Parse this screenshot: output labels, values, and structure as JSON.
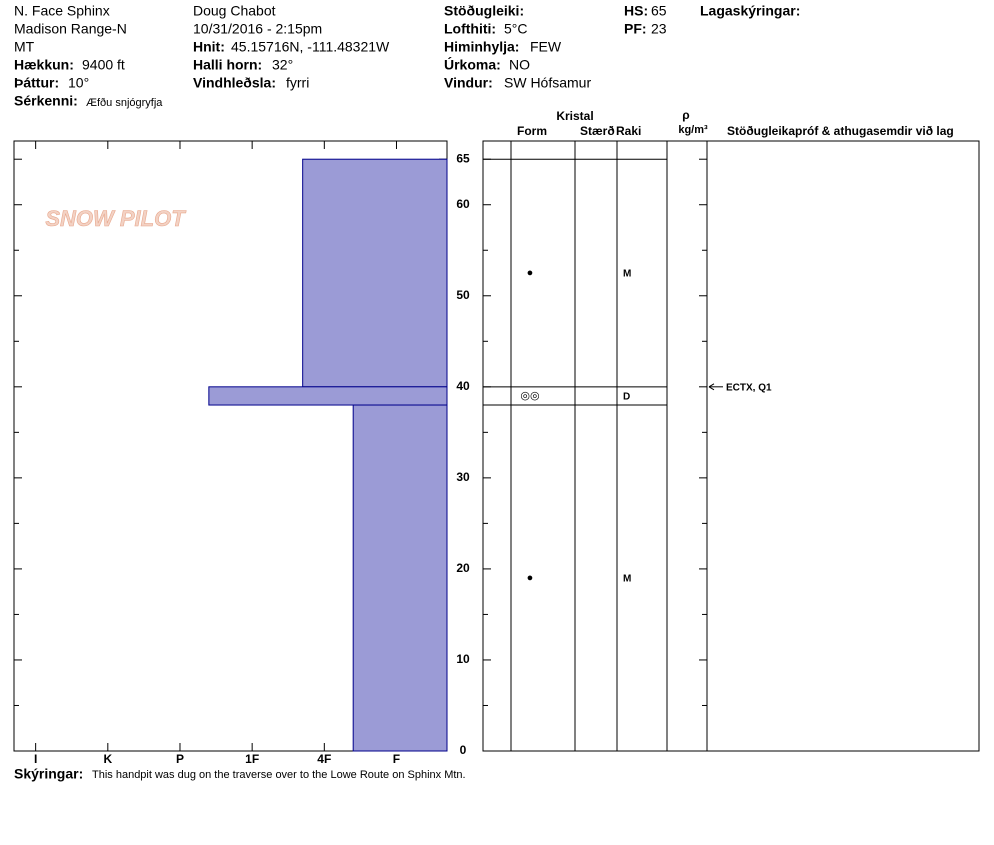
{
  "header": {
    "location": "N. Face Sphinx",
    "range": "Madison Range-N",
    "state": "MT",
    "elevation": {
      "label": "Hækkun:",
      "value": "9400 ft"
    },
    "aspect": {
      "label": "Þáttur:",
      "value": "10°"
    },
    "features": {
      "label": "Sérkenni:",
      "value": "Æfðu snjógryfja"
    },
    "observer": "Doug Chabot",
    "datetime": "10/31/2016 - 2:15pm",
    "coords": {
      "label": "Hnit:",
      "value": "45.15716N, -111.48321W"
    },
    "slope": {
      "label": "Halli horn:",
      "value": "32°"
    },
    "wind_loading": {
      "label": "Vindhleðsla:",
      "value": "fyrri"
    },
    "stability": {
      "label": "Stöðugleiki:"
    },
    "air_temp": {
      "label": "Lofthiti:",
      "value": "5°C"
    },
    "sky": {
      "label": "Himinhylja:",
      "value": "FEW"
    },
    "precip": {
      "label": "Úrkoma:",
      "value": "NO"
    },
    "wind": {
      "label": "Vindur:",
      "value": "SW Hófsamur"
    },
    "hs": {
      "label": "HS:",
      "value": 65
    },
    "pf": {
      "label": "PF:",
      "value": 23
    },
    "layer_notes": "Lagaskýringar:",
    "logo": "SNOW PILOT"
  },
  "chart_data": {
    "type": "snowprofile",
    "ylim": [
      0,
      67
    ],
    "yticks": [
      0,
      10,
      20,
      30,
      40,
      50,
      60,
      65
    ],
    "yminorticks": [
      5,
      15,
      25,
      35,
      45,
      55
    ],
    "xlim": [
      0.3,
      6.3
    ],
    "xticks": [
      {
        "value": 6,
        "label": "I"
      },
      {
        "value": 5,
        "label": "K"
      },
      {
        "value": 4,
        "label": "P"
      },
      {
        "value": 3,
        "label": "1F"
      },
      {
        "value": 2,
        "label": "4F"
      },
      {
        "value": 1,
        "label": "F"
      }
    ],
    "color": "#9b9bd6",
    "columns": {
      "crystal": "Kristal",
      "form": "Form",
      "size": "Stærð",
      "moisture": "Raki",
      "density": "ρ",
      "density_unit": "kg/m³",
      "tests": "Stöðugleikapróf & athugasemdir við lag"
    },
    "layers": [
      {
        "top": 65,
        "bottom": 40,
        "hardness": 2.3,
        "form": "●",
        "moisture": "M"
      },
      {
        "top": 40,
        "bottom": 38,
        "hardness": 3.6,
        "form": "◎◎",
        "moisture": "D"
      },
      {
        "top": 38,
        "bottom": 0,
        "hardness": 1.6,
        "form": "●",
        "moisture": "M"
      }
    ],
    "tests": [
      {
        "depth": 40,
        "label": "ECTX, Q1"
      }
    ]
  },
  "footer": {
    "label": "Skýringar:",
    "value": "This handpit was dug on the traverse over to the Lowe Route on Sphinx Mtn."
  }
}
